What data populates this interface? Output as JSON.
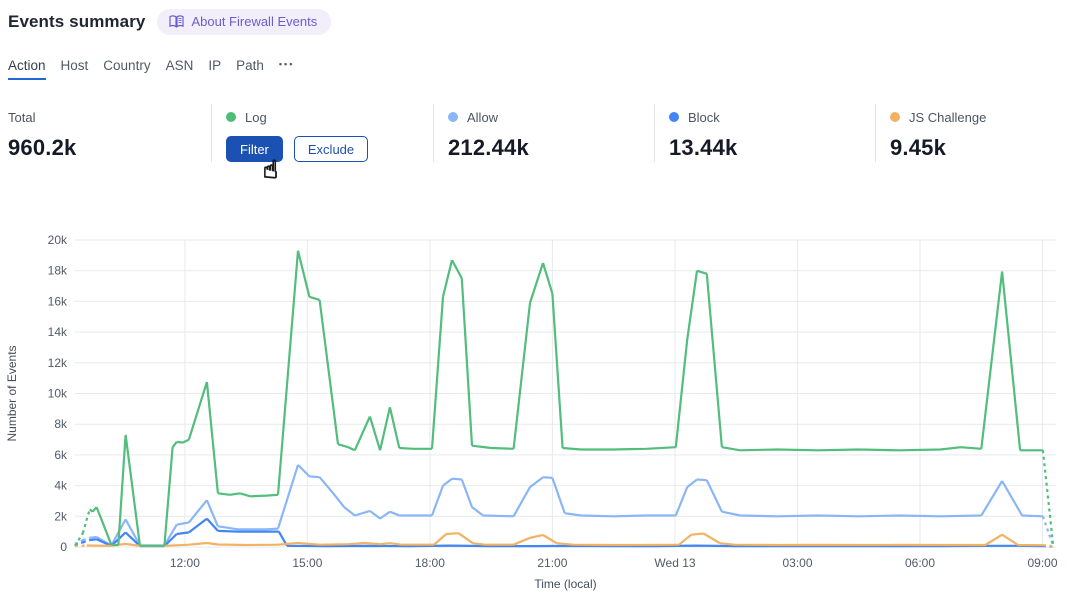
{
  "header": {
    "title": "Events summary",
    "about_label": "About Firewall Events",
    "about_color": "#6a5ecf"
  },
  "tabs": {
    "items": [
      {
        "label": "Action",
        "active": true
      },
      {
        "label": "Host",
        "active": false
      },
      {
        "label": "Country",
        "active": false
      },
      {
        "label": "ASN",
        "active": false
      },
      {
        "label": "IP",
        "active": false
      },
      {
        "label": "Path",
        "active": false
      }
    ],
    "more_label": "•••",
    "active_underline_color": "#2366d6"
  },
  "stats": {
    "cards": [
      {
        "id": "total",
        "label": "Total",
        "value": "960.2k"
      },
      {
        "id": "log",
        "label": "Log",
        "dot_color": "#4dbd77",
        "filter_label": "Filter",
        "exclude_label": "Exclude",
        "button_blue": "#1b51b3"
      },
      {
        "id": "allow",
        "label": "Allow",
        "dot_color": "#8ab6f6",
        "value": "212.44k"
      },
      {
        "id": "block",
        "label": "Block",
        "dot_color": "#4285f4",
        "value": "13.44k"
      },
      {
        "id": "js_challenge",
        "label": "JS Challenge",
        "dot_color": "#f2b264",
        "value": "9.45k"
      }
    ]
  },
  "cursor": {
    "glyph": "☝"
  },
  "chart_data": {
    "type": "line",
    "title": "",
    "xlabel": "Time (local)",
    "ylabel": "Number of Events",
    "x_unit": "hours since Tue 00:00 (local)",
    "xlim": [
      9.31,
      33.33
    ],
    "ylim": [
      0,
      20000
    ],
    "grid": true,
    "legend_position": "top-stat-cards",
    "x_ticks": [
      {
        "value": 12,
        "label": "12:00"
      },
      {
        "value": 15,
        "label": "15:00"
      },
      {
        "value": 18,
        "label": "18:00"
      },
      {
        "value": 21,
        "label": "21:00"
      },
      {
        "value": 24,
        "label": "Wed 13"
      },
      {
        "value": 27,
        "label": "03:00"
      },
      {
        "value": 30,
        "label": "06:00"
      },
      {
        "value": 33,
        "label": "09:00"
      }
    ],
    "y_ticks": [
      {
        "value": 0,
        "label": "0"
      },
      {
        "value": 2000,
        "label": "2k"
      },
      {
        "value": 4000,
        "label": "4k"
      },
      {
        "value": 6000,
        "label": "6k"
      },
      {
        "value": 8000,
        "label": "8k"
      },
      {
        "value": 10000,
        "label": "10k"
      },
      {
        "value": 12000,
        "label": "12k"
      },
      {
        "value": 14000,
        "label": "14k"
      },
      {
        "value": 16000,
        "label": "16k"
      },
      {
        "value": 18000,
        "label": "18k"
      },
      {
        "value": 20000,
        "label": "20k"
      }
    ],
    "draw_order": [
      1,
      2,
      3,
      0
    ],
    "series": [
      {
        "name": "Log",
        "color": "#52bd7c",
        "dash_start": 2,
        "dash_end": 1,
        "points": [
          [
            9.31,
            80
          ],
          [
            9.5,
            900
          ],
          [
            9.67,
            2450
          ],
          [
            9.74,
            2300
          ],
          [
            9.84,
            2600
          ],
          [
            10.2,
            150
          ],
          [
            10.37,
            120
          ],
          [
            10.55,
            7300
          ],
          [
            10.9,
            100
          ],
          [
            11.5,
            80
          ],
          [
            11.7,
            6500
          ],
          [
            11.8,
            6850
          ],
          [
            11.95,
            6800
          ],
          [
            12.1,
            7000
          ],
          [
            12.54,
            10750
          ],
          [
            12.81,
            3500
          ],
          [
            13.1,
            3400
          ],
          [
            13.35,
            3500
          ],
          [
            13.6,
            3300
          ],
          [
            14.0,
            3350
          ],
          [
            14.28,
            3400
          ],
          [
            14.77,
            19300
          ],
          [
            15.05,
            16300
          ],
          [
            15.3,
            16100
          ],
          [
            15.75,
            6700
          ],
          [
            16.0,
            6500
          ],
          [
            16.16,
            6300
          ],
          [
            16.53,
            8500
          ],
          [
            16.78,
            6300
          ],
          [
            17.02,
            9100
          ],
          [
            17.25,
            6450
          ],
          [
            17.6,
            6400
          ],
          [
            18.05,
            6400
          ],
          [
            18.32,
            16300
          ],
          [
            18.54,
            18700
          ],
          [
            18.78,
            17500
          ],
          [
            19.03,
            6600
          ],
          [
            19.5,
            6450
          ],
          [
            20.05,
            6400
          ],
          [
            20.45,
            15900
          ],
          [
            20.77,
            18500
          ],
          [
            21.0,
            16500
          ],
          [
            21.25,
            6450
          ],
          [
            21.7,
            6350
          ],
          [
            22.5,
            6350
          ],
          [
            23.3,
            6400
          ],
          [
            24.02,
            6500
          ],
          [
            24.3,
            13500
          ],
          [
            24.54,
            18000
          ],
          [
            24.78,
            17800
          ],
          [
            25.15,
            6500
          ],
          [
            25.6,
            6300
          ],
          [
            26.5,
            6350
          ],
          [
            27.5,
            6300
          ],
          [
            28.5,
            6350
          ],
          [
            29.5,
            6300
          ],
          [
            30.5,
            6350
          ],
          [
            31.0,
            6500
          ],
          [
            31.5,
            6400
          ],
          [
            32.01,
            17950
          ],
          [
            32.45,
            6300
          ],
          [
            33.01,
            6300
          ],
          [
            33.26,
            150
          ]
        ]
      },
      {
        "name": "Allow",
        "color": "#8ab6f6",
        "dash_start": 2,
        "dash_end": 1,
        "points": [
          [
            9.31,
            200
          ],
          [
            9.5,
            450
          ],
          [
            9.67,
            600
          ],
          [
            9.84,
            650
          ],
          [
            10.2,
            100
          ],
          [
            10.55,
            1800
          ],
          [
            10.9,
            100
          ],
          [
            11.5,
            100
          ],
          [
            11.8,
            1450
          ],
          [
            12.1,
            1600
          ],
          [
            12.54,
            3050
          ],
          [
            12.81,
            1350
          ],
          [
            13.3,
            1150
          ],
          [
            14.0,
            1150
          ],
          [
            14.28,
            1200
          ],
          [
            14.77,
            5350
          ],
          [
            15.05,
            4600
          ],
          [
            15.3,
            4550
          ],
          [
            15.6,
            3600
          ],
          [
            15.9,
            2600
          ],
          [
            16.16,
            2050
          ],
          [
            16.53,
            2350
          ],
          [
            16.78,
            1850
          ],
          [
            17.02,
            2300
          ],
          [
            17.25,
            2050
          ],
          [
            18.05,
            2050
          ],
          [
            18.32,
            4000
          ],
          [
            18.54,
            4450
          ],
          [
            18.78,
            4400
          ],
          [
            19.03,
            2600
          ],
          [
            19.3,
            2050
          ],
          [
            20.05,
            2000
          ],
          [
            20.45,
            3900
          ],
          [
            20.77,
            4550
          ],
          [
            21.0,
            4500
          ],
          [
            21.3,
            2200
          ],
          [
            21.7,
            2050
          ],
          [
            22.5,
            2000
          ],
          [
            23.3,
            2050
          ],
          [
            24.02,
            2050
          ],
          [
            24.3,
            3900
          ],
          [
            24.54,
            4400
          ],
          [
            24.78,
            4350
          ],
          [
            25.15,
            2300
          ],
          [
            25.6,
            2050
          ],
          [
            26.5,
            2000
          ],
          [
            27.5,
            2050
          ],
          [
            28.5,
            2000
          ],
          [
            29.5,
            2050
          ],
          [
            30.5,
            2000
          ],
          [
            31.5,
            2050
          ],
          [
            32.01,
            4300
          ],
          [
            32.5,
            2050
          ],
          [
            33.01,
            2000
          ],
          [
            33.26,
            100
          ]
        ]
      },
      {
        "name": "Block",
        "color": "#4285f4",
        "dash_start": 2,
        "dash_end": 1,
        "points": [
          [
            9.31,
            120
          ],
          [
            9.5,
            300
          ],
          [
            9.67,
            450
          ],
          [
            9.84,
            500
          ],
          [
            10.2,
            70
          ],
          [
            10.55,
            950
          ],
          [
            10.9,
            60
          ],
          [
            11.5,
            60
          ],
          [
            11.8,
            850
          ],
          [
            12.1,
            950
          ],
          [
            12.54,
            1850
          ],
          [
            12.81,
            1050
          ],
          [
            13.3,
            1000
          ],
          [
            14.0,
            1000
          ],
          [
            14.3,
            1000
          ],
          [
            14.5,
            80
          ],
          [
            15.5,
            60
          ],
          [
            16.5,
            70
          ],
          [
            17.5,
            60
          ],
          [
            18.5,
            90
          ],
          [
            19.5,
            60
          ],
          [
            20.5,
            60
          ],
          [
            21.5,
            70
          ],
          [
            22.5,
            60
          ],
          [
            23.5,
            60
          ],
          [
            24.5,
            90
          ],
          [
            25.5,
            60
          ],
          [
            26.5,
            60
          ],
          [
            27.5,
            60
          ],
          [
            28.5,
            60
          ],
          [
            29.5,
            60
          ],
          [
            30.5,
            60
          ],
          [
            31.8,
            80
          ],
          [
            32.3,
            80
          ],
          [
            33.01,
            60
          ],
          [
            33.26,
            30
          ]
        ]
      },
      {
        "name": "JS Challenge",
        "color": "#f2b264",
        "dash_start": 1,
        "dash_end": 1,
        "points": [
          [
            9.31,
            70
          ],
          [
            9.6,
            100
          ],
          [
            10.2,
            80
          ],
          [
            10.55,
            200
          ],
          [
            10.9,
            80
          ],
          [
            11.5,
            80
          ],
          [
            12.1,
            150
          ],
          [
            12.54,
            260
          ],
          [
            12.81,
            160
          ],
          [
            13.5,
            130
          ],
          [
            14.28,
            150
          ],
          [
            14.77,
            260
          ],
          [
            15.3,
            150
          ],
          [
            16.0,
            180
          ],
          [
            16.4,
            260
          ],
          [
            16.78,
            180
          ],
          [
            17.02,
            250
          ],
          [
            17.3,
            150
          ],
          [
            18.1,
            150
          ],
          [
            18.4,
            850
          ],
          [
            18.7,
            900
          ],
          [
            19.05,
            250
          ],
          [
            19.35,
            150
          ],
          [
            20.05,
            150
          ],
          [
            20.45,
            600
          ],
          [
            20.77,
            780
          ],
          [
            21.1,
            250
          ],
          [
            21.5,
            150
          ],
          [
            22.5,
            130
          ],
          [
            23.3,
            140
          ],
          [
            24.1,
            150
          ],
          [
            24.4,
            800
          ],
          [
            24.7,
            880
          ],
          [
            25.1,
            250
          ],
          [
            25.45,
            150
          ],
          [
            26.5,
            130
          ],
          [
            27.5,
            140
          ],
          [
            28.5,
            130
          ],
          [
            29.5,
            140
          ],
          [
            30.5,
            130
          ],
          [
            31.6,
            130
          ],
          [
            32.01,
            800
          ],
          [
            32.4,
            130
          ],
          [
            33.01,
            120
          ],
          [
            33.26,
            60
          ]
        ]
      }
    ]
  }
}
